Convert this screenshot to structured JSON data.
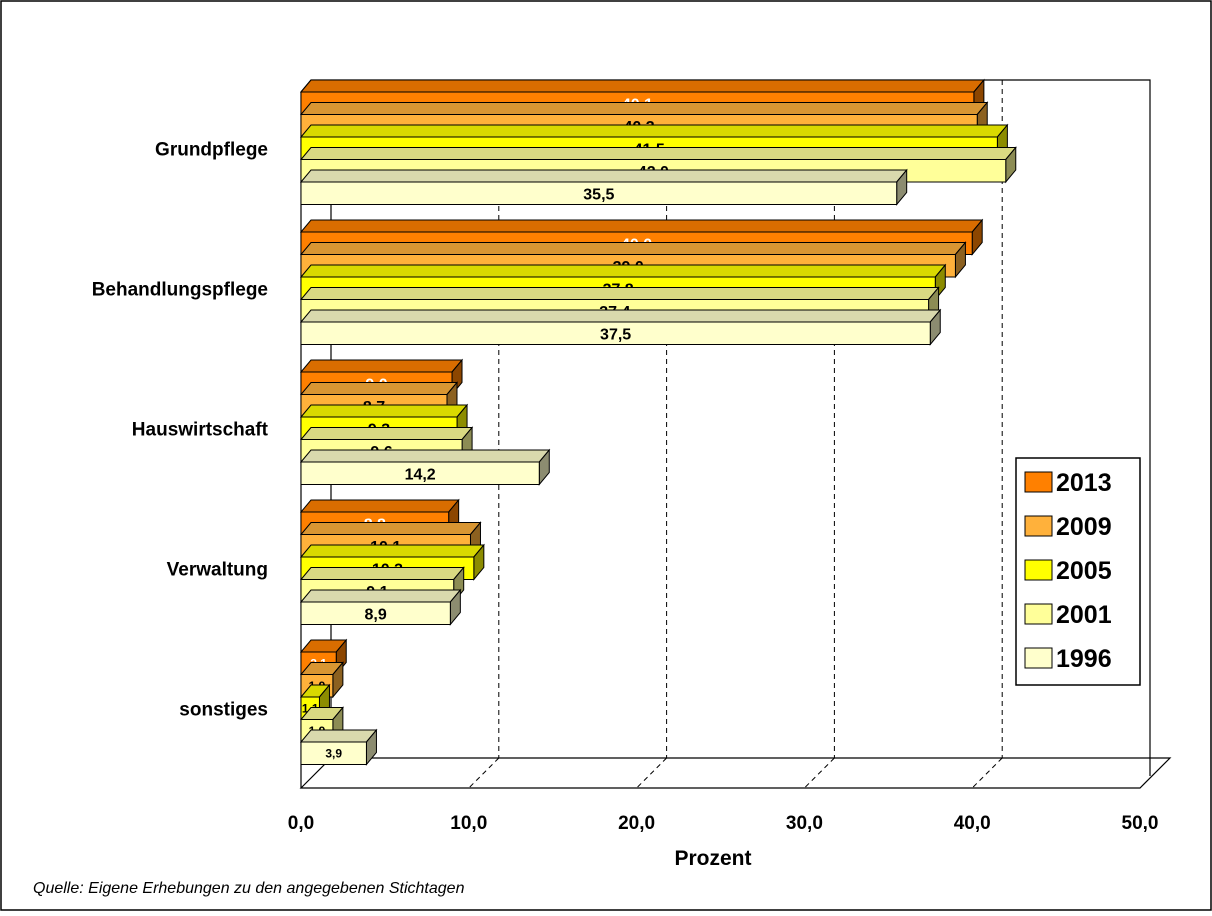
{
  "chart_data": {
    "type": "bar",
    "orientation": "horizontal",
    "three_d": true,
    "categories": [
      "Grundpflege",
      "Behandlungspflege",
      "Hauswirtschaft",
      "Verwaltung",
      "sonstiges"
    ],
    "series": [
      {
        "name": "2013",
        "color": "#FF8000",
        "label_color": "#FFFFFF",
        "values": [
          40.1,
          40.0,
          9.0,
          8.8,
          2.1
        ]
      },
      {
        "name": "2009",
        "color": "#FFB13B",
        "label_color": "#000000",
        "values": [
          40.3,
          39.0,
          8.7,
          10.1,
          1.9
        ]
      },
      {
        "name": "2005",
        "color": "#FFFF00",
        "label_color": "#000000",
        "values": [
          41.5,
          37.8,
          9.3,
          10.3,
          1.1
        ]
      },
      {
        "name": "2001",
        "color": "#FFFF99",
        "label_color": "#000000",
        "values": [
          42.0,
          37.4,
          9.6,
          9.1,
          1.9
        ]
      },
      {
        "name": "1996",
        "color": "#FFFFCC",
        "label_color": "#000000",
        "values": [
          35.5,
          37.5,
          14.2,
          8.9,
          3.9
        ]
      }
    ],
    "value_labels": [
      [
        "40,1",
        "40,0",
        "9,0",
        "8,8",
        "2,1"
      ],
      [
        "40,3",
        "39,0",
        "8,7",
        "10,1",
        "1,9"
      ],
      [
        "41,5",
        "37,8",
        "9,3",
        "10,3",
        "1,1"
      ],
      [
        "42,0",
        "37,4",
        "9,6",
        "9,1",
        "1,9"
      ],
      [
        "35,5",
        "37,5",
        "14,2",
        "8,9",
        "3,9"
      ]
    ],
    "xlim": [
      0,
      50
    ],
    "xticks": [
      0,
      10,
      20,
      30,
      40,
      50
    ],
    "xtick_labels": [
      "0,0",
      "10,0",
      "20,0",
      "30,0",
      "40,0",
      "50,0"
    ],
    "xlabel": "Prozent",
    "ylabel": "",
    "title": "",
    "grid": "vertical-dashed",
    "legend_position": "right",
    "source_note": "Quelle: Eigene Erhebungen zu den angegebenen Stichtagen"
  }
}
